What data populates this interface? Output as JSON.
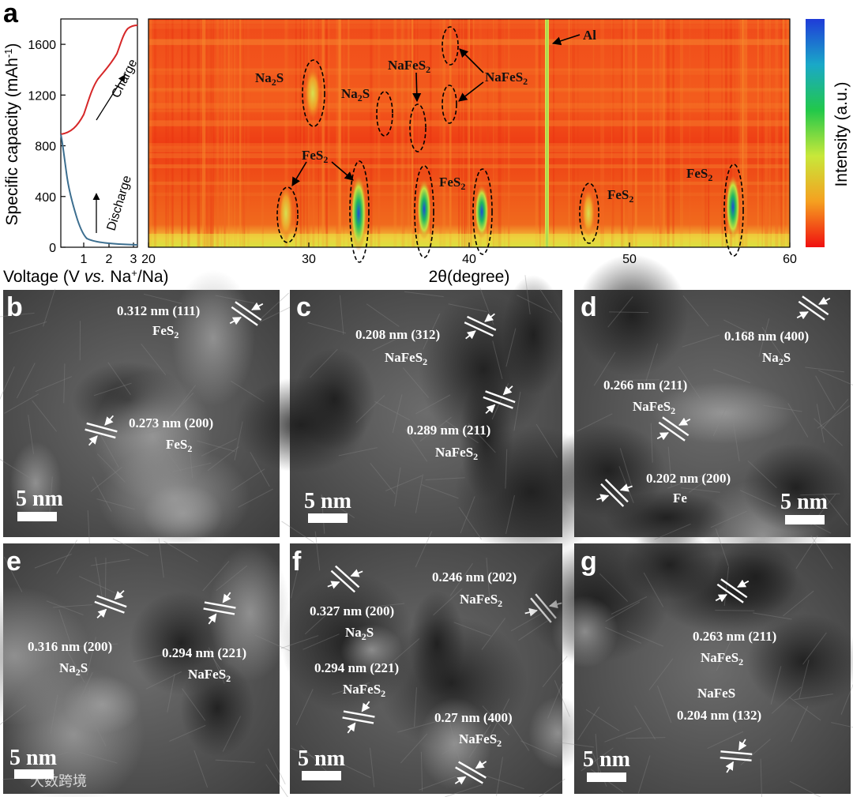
{
  "panel_a": {
    "letter": "a",
    "left_plot": {
      "ylabel": "Specific capacity (mAh",
      "ylabel_sup": "-1",
      "ylabel_close": ")",
      "xlabel_pre": "Voltage (V ",
      "xlabel_ital": "vs.",
      "xlabel_post": " Na",
      "xlabel_sup": "+",
      "xlabel_end": "/Na)",
      "y_ticks": [
        "0",
        "400",
        "800",
        "1200",
        "1600"
      ],
      "x_ticks": [
        "1",
        "2",
        "3"
      ],
      "charge_label": "Charge",
      "discharge_label": "Discharge",
      "colors": {
        "charge": "#d62728",
        "discharge": "#3c6e8f"
      }
    },
    "map": {
      "xlabel": "2θ(degree)",
      "x_ticks": [
        "20",
        "30",
        "40",
        "50",
        "60"
      ],
      "colorbar_label": "Intensity (a.u.)",
      "peaks": [
        {
          "label": "Na",
          "sub": "2",
          "tail": "S",
          "x": 30.4,
          "y": 1250
        },
        {
          "label": "Na",
          "sub": "2",
          "tail": "S",
          "x": 34.9,
          "y": 1060
        },
        {
          "label": "NaFeS",
          "sub": "2",
          "tail": "",
          "x": 36.7,
          "y": 980
        },
        {
          "label": "NaFeS",
          "sub": "2",
          "tail": "",
          "x": 38.8,
          "y": 1500
        },
        {
          "label": "FeS",
          "sub": "2",
          "tail": "",
          "x": 28.6,
          "y": 250
        },
        {
          "label": "FeS",
          "sub": "2",
          "tail": "",
          "x": 33.1,
          "y": 300
        },
        {
          "label": "FeS",
          "sub": "2",
          "tail": "",
          "x": 37.1,
          "y": 300
        },
        {
          "label": "FeS",
          "sub": "2",
          "tail": "",
          "x": 47.5,
          "y": 250
        },
        {
          "label": "FeS",
          "sub": "2",
          "tail": "",
          "x": 56.5,
          "y": 300
        },
        {
          "label": "Al",
          "sub": "",
          "tail": "",
          "x": 44.8,
          "y": 1600
        }
      ]
    }
  },
  "tem_panels": [
    {
      "letter": "b",
      "scale": "5 nm",
      "labels": [
        {
          "text": "0.312 nm (111)",
          "phase": "FeS",
          "sub": "2"
        },
        {
          "text": "0.273 nm (200)",
          "phase": "FeS",
          "sub": "2"
        }
      ]
    },
    {
      "letter": "c",
      "scale": "5 nm",
      "labels": [
        {
          "text": "0.208 nm (312)",
          "phase": "NaFeS",
          "sub": "2"
        },
        {
          "text": "0.289 nm (211)",
          "phase": "NaFeS",
          "sub": "2"
        }
      ]
    },
    {
      "letter": "d",
      "scale": "5 nm",
      "labels": [
        {
          "text": "0.168 nm (400)",
          "phase": "Na",
          "sub": "2",
          "tail": "S"
        },
        {
          "text": "0.266 nm (211)",
          "phase": "NaFeS",
          "sub": "2"
        },
        {
          "text": "0.202 nm (200)",
          "phase": "Fe",
          "sub": ""
        }
      ]
    },
    {
      "letter": "e",
      "scale": "5 nm",
      "labels": [
        {
          "text": "0.316 nm (200)",
          "phase": "Na",
          "sub": "2",
          "tail": "S"
        },
        {
          "text": "0.294 nm (221)",
          "phase": "NaFeS",
          "sub": "2"
        }
      ]
    },
    {
      "letter": "f",
      "scale": "5 nm",
      "labels": [
        {
          "text": "0.327 nm (200)",
          "phase": "Na",
          "sub": "2",
          "tail": "S"
        },
        {
          "text": "0.246 nm (202)",
          "phase": "NaFeS",
          "sub": "2"
        },
        {
          "text": "0.294 nm (221)",
          "phase": "NaFeS",
          "sub": "2"
        },
        {
          "text": "0.27 nm (400)",
          "phase": "NaFeS",
          "sub": "2"
        }
      ]
    },
    {
      "letter": "g",
      "scale": "5 nm",
      "labels": [
        {
          "text": "0.263 nm (211)",
          "phase": "NaFeS",
          "sub": "2"
        },
        {
          "text": "NaFeS",
          "sub": "2"
        },
        {
          "text": "0.204 nm (132)"
        }
      ]
    }
  ],
  "watermark": "大数跨境"
}
